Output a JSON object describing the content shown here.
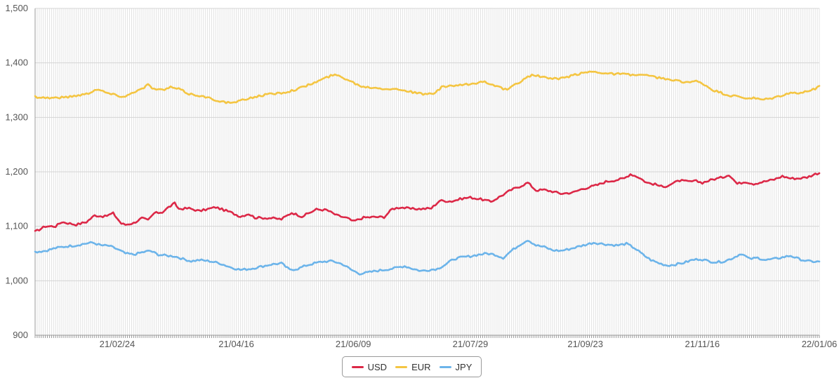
{
  "chart_data": {
    "type": "line",
    "title": "",
    "xlabel": "",
    "ylabel": "",
    "ylim": [
      900,
      1500
    ],
    "yticks": [
      900,
      1000,
      1100,
      1200,
      1300,
      1400,
      1500
    ],
    "ytick_labels": [
      "900",
      "1,000",
      "1,100",
      "1,200",
      "1,300",
      "1,400",
      "1,500"
    ],
    "xticks": [
      {
        "index": 40,
        "label": "21/02/24"
      },
      {
        "index": 98,
        "label": "21/04/16"
      },
      {
        "index": 155,
        "label": "21/06/09"
      },
      {
        "index": 212,
        "label": "21/07/29"
      },
      {
        "index": 268,
        "label": "21/09/23"
      },
      {
        "index": 325,
        "label": "21/11/16"
      },
      {
        "index": 382,
        "label": "22/01/06"
      }
    ],
    "grid": true,
    "legend_position": "bottom",
    "n_points": 383,
    "series": [
      {
        "name": "USD",
        "color": "#dc2847",
        "keypoints": [
          [
            0,
            1090
          ],
          [
            5,
            1100
          ],
          [
            10,
            1100
          ],
          [
            13,
            1108
          ],
          [
            20,
            1103
          ],
          [
            25,
            1108
          ],
          [
            29,
            1120
          ],
          [
            34,
            1118
          ],
          [
            38,
            1124
          ],
          [
            42,
            1105
          ],
          [
            44,
            1103
          ],
          [
            48,
            1106
          ],
          [
            52,
            1115
          ],
          [
            55,
            1111
          ],
          [
            58,
            1124
          ],
          [
            62,
            1126
          ],
          [
            65,
            1135
          ],
          [
            68,
            1142
          ],
          [
            70,
            1132
          ],
          [
            75,
            1133
          ],
          [
            80,
            1128
          ],
          [
            88,
            1135
          ],
          [
            95,
            1126
          ],
          [
            100,
            1118
          ],
          [
            104,
            1123
          ],
          [
            107,
            1116
          ],
          [
            115,
            1115
          ],
          [
            120,
            1113
          ],
          [
            125,
            1125
          ],
          [
            130,
            1118
          ],
          [
            137,
            1131
          ],
          [
            142,
            1130
          ],
          [
            147,
            1120
          ],
          [
            152,
            1115
          ],
          [
            155,
            1109
          ],
          [
            160,
            1116
          ],
          [
            165,
            1117
          ],
          [
            170,
            1117
          ],
          [
            174,
            1132
          ],
          [
            178,
            1135
          ],
          [
            183,
            1132
          ],
          [
            188,
            1132
          ],
          [
            193,
            1133
          ],
          [
            197,
            1147
          ],
          [
            203,
            1146
          ],
          [
            208,
            1151
          ],
          [
            212,
            1153
          ],
          [
            218,
            1149
          ],
          [
            222,
            1145
          ],
          [
            228,
            1158
          ],
          [
            232,
            1167
          ],
          [
            236,
            1173
          ],
          [
            240,
            1180
          ],
          [
            244,
            1166
          ],
          [
            248,
            1167
          ],
          [
            252,
            1164
          ],
          [
            256,
            1160
          ],
          [
            262,
            1162
          ],
          [
            266,
            1168
          ],
          [
            270,
            1172
          ],
          [
            274,
            1176
          ],
          [
            278,
            1182
          ],
          [
            283,
            1185
          ],
          [
            287,
            1188
          ],
          [
            290,
            1196
          ],
          [
            294,
            1190
          ],
          [
            298,
            1180
          ],
          [
            302,
            1177
          ],
          [
            306,
            1172
          ],
          [
            310,
            1178
          ],
          [
            314,
            1184
          ],
          [
            318,
            1182
          ],
          [
            322,
            1183
          ],
          [
            325,
            1180
          ],
          [
            330,
            1186
          ],
          [
            335,
            1190
          ],
          [
            338,
            1195
          ],
          [
            342,
            1178
          ],
          [
            346,
            1182
          ],
          [
            350,
            1178
          ],
          [
            355,
            1182
          ],
          [
            360,
            1186
          ],
          [
            364,
            1192
          ],
          [
            368,
            1188
          ],
          [
            372,
            1188
          ],
          [
            376,
            1190
          ],
          [
            380,
            1196
          ],
          [
            382,
            1198
          ]
        ]
      },
      {
        "name": "EUR",
        "color": "#f4c542",
        "keypoints": [
          [
            0,
            1338
          ],
          [
            5,
            1336
          ],
          [
            10,
            1336
          ],
          [
            15,
            1337
          ],
          [
            20,
            1340
          ],
          [
            25,
            1343
          ],
          [
            30,
            1352
          ],
          [
            35,
            1345
          ],
          [
            40,
            1340
          ],
          [
            44,
            1338
          ],
          [
            48,
            1347
          ],
          [
            52,
            1352
          ],
          [
            55,
            1360
          ],
          [
            58,
            1352
          ],
          [
            62,
            1350
          ],
          [
            66,
            1355
          ],
          [
            70,
            1352
          ],
          [
            75,
            1343
          ],
          [
            80,
            1340
          ],
          [
            85,
            1335
          ],
          [
            90,
            1330
          ],
          [
            95,
            1326
          ],
          [
            100,
            1330
          ],
          [
            105,
            1336
          ],
          [
            110,
            1340
          ],
          [
            115,
            1343
          ],
          [
            120,
            1345
          ],
          [
            125,
            1349
          ],
          [
            130,
            1355
          ],
          [
            135,
            1362
          ],
          [
            140,
            1370
          ],
          [
            145,
            1378
          ],
          [
            148,
            1376
          ],
          [
            152,
            1370
          ],
          [
            156,
            1362
          ],
          [
            160,
            1356
          ],
          [
            165,
            1355
          ],
          [
            170,
            1353
          ],
          [
            175,
            1352
          ],
          [
            180,
            1350
          ],
          [
            185,
            1345
          ],
          [
            190,
            1342
          ],
          [
            195,
            1345
          ],
          [
            198,
            1355
          ],
          [
            202,
            1358
          ],
          [
            206,
            1358
          ],
          [
            210,
            1360
          ],
          [
            214,
            1362
          ],
          [
            218,
            1366
          ],
          [
            222,
            1362
          ],
          [
            226,
            1355
          ],
          [
            230,
            1350
          ],
          [
            234,
            1360
          ],
          [
            238,
            1370
          ],
          [
            242,
            1378
          ],
          [
            246,
            1375
          ],
          [
            250,
            1372
          ],
          [
            255,
            1370
          ],
          [
            260,
            1375
          ],
          [
            265,
            1380
          ],
          [
            270,
            1384
          ],
          [
            275,
            1383
          ],
          [
            280,
            1380
          ],
          [
            285,
            1380
          ],
          [
            290,
            1378
          ],
          [
            295,
            1378
          ],
          [
            300,
            1375
          ],
          [
            305,
            1372
          ],
          [
            310,
            1368
          ],
          [
            314,
            1366
          ],
          [
            318,
            1365
          ],
          [
            322,
            1366
          ],
          [
            326,
            1360
          ],
          [
            330,
            1350
          ],
          [
            334,
            1345
          ],
          [
            338,
            1340
          ],
          [
            342,
            1338
          ],
          [
            346,
            1335
          ],
          [
            350,
            1335
          ],
          [
            354,
            1332
          ],
          [
            358,
            1334
          ],
          [
            362,
            1338
          ],
          [
            366,
            1343
          ],
          [
            370,
            1345
          ],
          [
            374,
            1345
          ],
          [
            378,
            1350
          ],
          [
            382,
            1356
          ]
        ]
      },
      {
        "name": "JPY",
        "color": "#6cb4ea",
        "keypoints": [
          [
            0,
            1053
          ],
          [
            5,
            1055
          ],
          [
            10,
            1060
          ],
          [
            15,
            1063
          ],
          [
            20,
            1065
          ],
          [
            24,
            1068
          ],
          [
            28,
            1070
          ],
          [
            32,
            1065
          ],
          [
            36,
            1064
          ],
          [
            40,
            1058
          ],
          [
            44,
            1050
          ],
          [
            48,
            1048
          ],
          [
            52,
            1052
          ],
          [
            56,
            1055
          ],
          [
            60,
            1048
          ],
          [
            64,
            1046
          ],
          [
            68,
            1045
          ],
          [
            72,
            1040
          ],
          [
            76,
            1036
          ],
          [
            80,
            1038
          ],
          [
            85,
            1036
          ],
          [
            90,
            1032
          ],
          [
            95,
            1025
          ],
          [
            100,
            1020
          ],
          [
            105,
            1022
          ],
          [
            110,
            1026
          ],
          [
            115,
            1030
          ],
          [
            120,
            1032
          ],
          [
            124,
            1020
          ],
          [
            128,
            1022
          ],
          [
            132,
            1028
          ],
          [
            136,
            1032
          ],
          [
            140,
            1035
          ],
          [
            145,
            1036
          ],
          [
            150,
            1030
          ],
          [
            154,
            1020
          ],
          [
            158,
            1013
          ],
          [
            162,
            1015
          ],
          [
            166,
            1018
          ],
          [
            170,
            1020
          ],
          [
            175,
            1023
          ],
          [
            180,
            1027
          ],
          [
            184,
            1022
          ],
          [
            188,
            1018
          ],
          [
            192,
            1020
          ],
          [
            196,
            1022
          ],
          [
            200,
            1030
          ],
          [
            204,
            1040
          ],
          [
            208,
            1043
          ],
          [
            212,
            1045
          ],
          [
            216,
            1048
          ],
          [
            220,
            1050
          ],
          [
            224,
            1048
          ],
          [
            228,
            1042
          ],
          [
            232,
            1055
          ],
          [
            236,
            1066
          ],
          [
            240,
            1075
          ],
          [
            244,
            1065
          ],
          [
            248,
            1062
          ],
          [
            252,
            1056
          ],
          [
            256,
            1055
          ],
          [
            260,
            1058
          ],
          [
            264,
            1062
          ],
          [
            268,
            1066
          ],
          [
            272,
            1070
          ],
          [
            276,
            1068
          ],
          [
            280,
            1066
          ],
          [
            284,
            1065
          ],
          [
            288,
            1068
          ],
          [
            292,
            1060
          ],
          [
            296,
            1048
          ],
          [
            300,
            1038
          ],
          [
            304,
            1032
          ],
          [
            308,
            1028
          ],
          [
            312,
            1030
          ],
          [
            316,
            1033
          ],
          [
            320,
            1038
          ],
          [
            324,
            1040
          ],
          [
            328,
            1036
          ],
          [
            332,
            1034
          ],
          [
            336,
            1036
          ],
          [
            340,
            1042
          ],
          [
            344,
            1050
          ],
          [
            348,
            1040
          ],
          [
            352,
            1042
          ],
          [
            356,
            1038
          ],
          [
            360,
            1040
          ],
          [
            364,
            1043
          ],
          [
            368,
            1046
          ],
          [
            372,
            1040
          ],
          [
            376,
            1036
          ],
          [
            380,
            1035
          ],
          [
            382,
            1035
          ]
        ]
      }
    ]
  }
}
